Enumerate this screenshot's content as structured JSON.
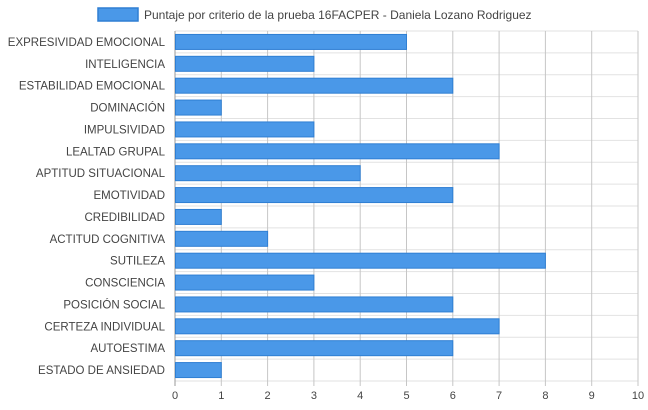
{
  "chart_data": {
    "type": "bar",
    "orientation": "horizontal",
    "categories": [
      "EXPRESIVIDAD EMOCIONAL",
      "INTELIGENCIA",
      "ESTABILIDAD EMOCIONAL",
      "DOMINACIÓN",
      "IMPULSIVIDAD",
      "LEALTAD GRUPAL",
      "APTITUD SITUACIONAL",
      "EMOTIVIDAD",
      "CREDIBILIDAD",
      "ACTITUD COGNITIVA",
      "SUTILEZA",
      "CONSCIENCIA",
      "POSICIÓN SOCIAL",
      "CERTEZA INDIVIDUAL",
      "AUTOESTIMA",
      "ESTADO DE ANSIEDAD"
    ],
    "series": [
      {
        "name": "Puntaje por criterio de la prueba 16FACPER - Daniela Lozano Rodriguez",
        "values": [
          5,
          3,
          6,
          1,
          3,
          7,
          4,
          6,
          1,
          2,
          8,
          3,
          6,
          7,
          6,
          1
        ],
        "color": "#4a98e8",
        "border_color": "#2f7fd3"
      }
    ],
    "xlim": [
      0,
      10
    ],
    "xticks": [
      "0",
      "1",
      "2",
      "3",
      "4",
      "5",
      "6",
      "7",
      "8",
      "9",
      "10"
    ],
    "grid": true,
    "legend": "top-center"
  }
}
